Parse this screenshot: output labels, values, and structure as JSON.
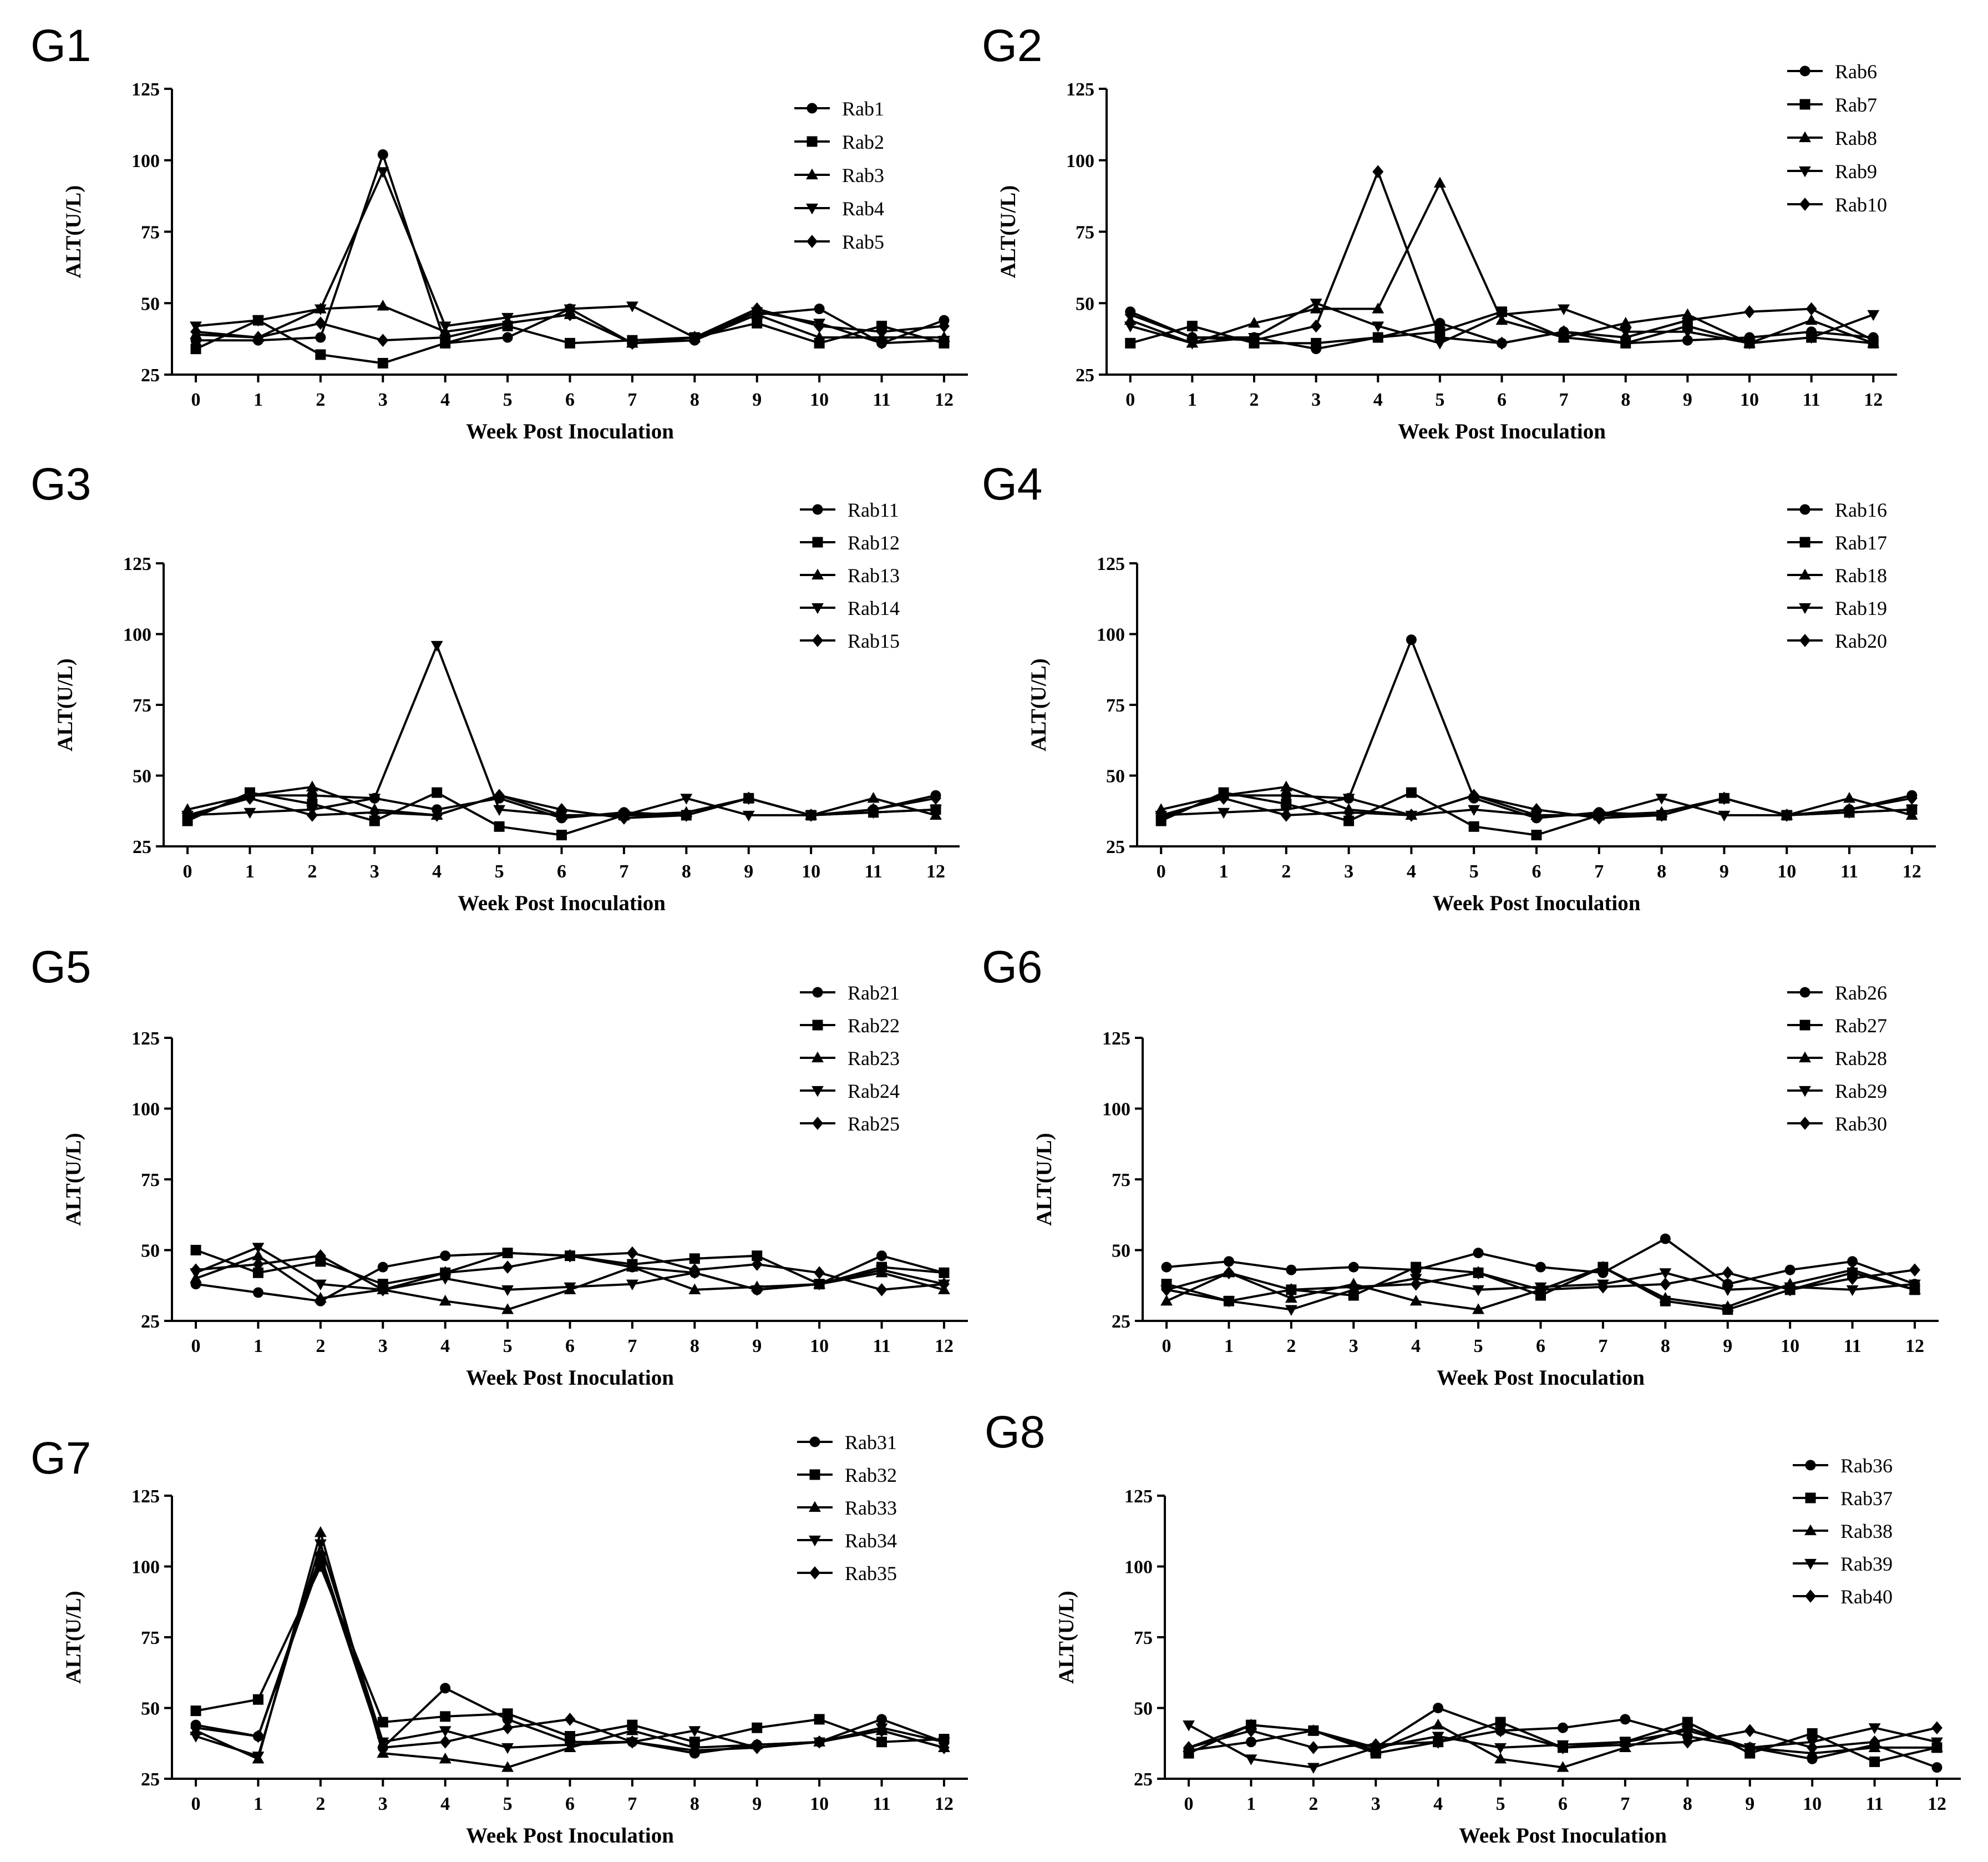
{
  "figure": {
    "colors": {
      "line": "#000000",
      "background": "#ffffff"
    }
  },
  "chart_data": [
    {
      "panel": "G1",
      "type": "line",
      "xlabel": "Week Post Inoculation",
      "ylabel": "ALT(U/L)",
      "ylim": [
        25,
        125
      ],
      "xlim": [
        0,
        12
      ],
      "x": [
        0,
        1,
        2,
        3,
        4,
        5,
        6,
        7,
        8,
        9,
        10,
        11,
        12
      ],
      "yticks": [
        25,
        50,
        75,
        100,
        125
      ],
      "series": [
        {
          "name": "Rab1",
          "marker": "circle",
          "values": [
            37,
            37,
            38,
            102,
            36,
            38,
            48,
            36,
            37,
            46,
            48,
            36,
            44
          ]
        },
        {
          "name": "Rab2",
          "marker": "square",
          "values": [
            34,
            44,
            32,
            29,
            36,
            42,
            36,
            37,
            38,
            43,
            36,
            42,
            36
          ]
        },
        {
          "name": "Rab3",
          "marker": "triangle",
          "values": [
            39,
            38,
            48,
            49,
            40,
            43,
            46,
            36,
            38,
            46,
            38,
            38,
            38
          ]
        },
        {
          "name": "Rab4",
          "marker": "tri-down",
          "values": [
            42,
            44,
            48,
            96,
            42,
            45,
            48,
            49,
            38,
            47,
            43,
            36,
            37
          ]
        },
        {
          "name": "Rab5",
          "marker": "diamond",
          "values": [
            40,
            38,
            43,
            37,
            38,
            43,
            46,
            36,
            38,
            48,
            42,
            40,
            42
          ]
        }
      ]
    },
    {
      "panel": "G2",
      "type": "line",
      "xlabel": "Week Post Inoculation",
      "ylabel": "ALT(U/L)",
      "ylim": [
        25,
        125
      ],
      "xlim": [
        0,
        12
      ],
      "x": [
        0,
        1,
        2,
        3,
        4,
        5,
        6,
        7,
        8,
        9,
        10,
        11,
        12
      ],
      "yticks": [
        25,
        50,
        75,
        100,
        125
      ],
      "series": [
        {
          "name": "Rab6",
          "marker": "circle",
          "values": [
            47,
            38,
            38,
            34,
            38,
            43,
            36,
            40,
            36,
            37,
            38,
            40,
            38
          ]
        },
        {
          "name": "Rab7",
          "marker": "square",
          "values": [
            36,
            42,
            36,
            36,
            38,
            40,
            47,
            38,
            36,
            42,
            36,
            38,
            36
          ]
        },
        {
          "name": "Rab8",
          "marker": "triangle",
          "values": [
            44,
            36,
            43,
            48,
            48,
            92,
            44,
            38,
            43,
            46,
            36,
            44,
            36
          ]
        },
        {
          "name": "Rab9",
          "marker": "tri-down",
          "values": [
            42,
            36,
            38,
            50,
            42,
            36,
            46,
            48,
            40,
            40,
            36,
            38,
            46
          ]
        },
        {
          "name": "Rab10",
          "marker": "diamond",
          "values": [
            46,
            38,
            37,
            42,
            96,
            38,
            36,
            40,
            38,
            44,
            47,
            48,
            37
          ]
        }
      ]
    },
    {
      "panel": "G3",
      "type": "line",
      "xlabel": "Week Post Inoculation",
      "ylabel": "ALT(U/L)",
      "ylim": [
        25,
        125
      ],
      "xlim": [
        0,
        12
      ],
      "x": [
        0,
        1,
        2,
        3,
        4,
        5,
        6,
        7,
        8,
        9,
        10,
        11,
        12
      ],
      "yticks": [
        25,
        50,
        75,
        100,
        125
      ],
      "series": [
        {
          "name": "Rab11",
          "marker": "circle",
          "values": [
            35,
            43,
            43,
            42,
            38,
            42,
            35,
            37,
            36,
            42,
            36,
            38,
            43
          ]
        },
        {
          "name": "Rab12",
          "marker": "square",
          "values": [
            34,
            44,
            40,
            34,
            44,
            32,
            29,
            36,
            36,
            42,
            36,
            37,
            38
          ]
        },
        {
          "name": "Rab13",
          "marker": "triangle",
          "values": [
            38,
            43,
            46,
            38,
            36,
            43,
            36,
            36,
            37,
            42,
            36,
            42,
            36
          ]
        },
        {
          "name": "Rab14",
          "marker": "tri-down",
          "values": [
            36,
            37,
            38,
            42,
            96,
            38,
            36,
            36,
            42,
            36,
            36,
            37,
            38
          ]
        },
        {
          "name": "Rab15",
          "marker": "diamond",
          "values": [
            36,
            42,
            36,
            37,
            36,
            43,
            38,
            35,
            36,
            42,
            36,
            38,
            42
          ]
        }
      ]
    },
    {
      "panel": "G4",
      "type": "line",
      "xlabel": "Week Post Inoculation",
      "ylabel": "ALT(U/L)",
      "ylim": [
        25,
        125
      ],
      "xlim": [
        0,
        12
      ],
      "x": [
        0,
        1,
        2,
        3,
        4,
        5,
        6,
        7,
        8,
        9,
        10,
        11,
        12
      ],
      "yticks": [
        25,
        50,
        75,
        100,
        125
      ],
      "series": [
        {
          "name": "Rab16",
          "marker": "circle",
          "values": [
            35,
            43,
            43,
            42,
            98,
            42,
            35,
            37,
            36,
            42,
            36,
            38,
            43
          ]
        },
        {
          "name": "Rab17",
          "marker": "square",
          "values": [
            34,
            44,
            40,
            34,
            44,
            32,
            29,
            36,
            36,
            42,
            36,
            37,
            38
          ]
        },
        {
          "name": "Rab18",
          "marker": "triangle",
          "values": [
            38,
            43,
            46,
            38,
            36,
            43,
            36,
            36,
            37,
            42,
            36,
            42,
            36
          ]
        },
        {
          "name": "Rab19",
          "marker": "tri-down",
          "values": [
            36,
            37,
            38,
            42,
            36,
            38,
            36,
            36,
            42,
            36,
            36,
            37,
            38
          ]
        },
        {
          "name": "Rab20",
          "marker": "diamond",
          "values": [
            36,
            42,
            36,
            37,
            36,
            43,
            38,
            35,
            36,
            42,
            36,
            38,
            42
          ]
        }
      ]
    },
    {
      "panel": "G5",
      "type": "line",
      "xlabel": "Week Post Inoculation",
      "ylabel": "ALT(U/L)",
      "ylim": [
        25,
        125
      ],
      "xlim": [
        0,
        12
      ],
      "x": [
        0,
        1,
        2,
        3,
        4,
        5,
        6,
        7,
        8,
        9,
        10,
        11,
        12
      ],
      "yticks": [
        25,
        50,
        75,
        100,
        125
      ],
      "series": [
        {
          "name": "Rab21",
          "marker": "circle",
          "values": [
            38,
            35,
            32,
            44,
            48,
            49,
            48,
            44,
            42,
            36,
            38,
            48,
            42
          ]
        },
        {
          "name": "Rab22",
          "marker": "square",
          "values": [
            50,
            42,
            46,
            38,
            42,
            49,
            48,
            45,
            47,
            48,
            38,
            44,
            42
          ]
        },
        {
          "name": "Rab23",
          "marker": "triangle",
          "values": [
            40,
            48,
            33,
            36,
            32,
            29,
            36,
            44,
            36,
            37,
            38,
            42,
            36
          ]
        },
        {
          "name": "Rab24",
          "marker": "tri-down",
          "values": [
            42,
            51,
            38,
            36,
            40,
            36,
            37,
            38,
            42,
            36,
            38,
            43,
            38
          ]
        },
        {
          "name": "Rab25",
          "marker": "diamond",
          "values": [
            43,
            45,
            48,
            36,
            42,
            44,
            48,
            49,
            43,
            45,
            42,
            36,
            38
          ]
        }
      ]
    },
    {
      "panel": "G6",
      "type": "line",
      "xlabel": "Week Post Inoculation",
      "ylabel": "ALT(U/L)",
      "ylim": [
        25,
        125
      ],
      "xlim": [
        0,
        12
      ],
      "x": [
        0,
        1,
        2,
        3,
        4,
        5,
        6,
        7,
        8,
        9,
        10,
        11,
        12
      ],
      "yticks": [
        25,
        50,
        75,
        100,
        125
      ],
      "series": [
        {
          "name": "Rab26",
          "marker": "circle",
          "values": [
            44,
            46,
            43,
            44,
            43,
            49,
            44,
            42,
            54,
            38,
            43,
            46,
            38
          ]
        },
        {
          "name": "Rab27",
          "marker": "square",
          "values": [
            38,
            32,
            36,
            34,
            44,
            42,
            34,
            44,
            32,
            29,
            36,
            42,
            36
          ]
        },
        {
          "name": "Rab28",
          "marker": "triangle",
          "values": [
            32,
            42,
            33,
            38,
            32,
            29,
            36,
            44,
            33,
            30,
            38,
            43,
            36
          ]
        },
        {
          "name": "Rab29",
          "marker": "tri-down",
          "values": [
            36,
            32,
            29,
            36,
            40,
            36,
            37,
            38,
            42,
            36,
            37,
            36,
            38
          ]
        },
        {
          "name": "Rab30",
          "marker": "diamond",
          "values": [
            36,
            42,
            36,
            37,
            38,
            42,
            36,
            37,
            38,
            42,
            36,
            40,
            43
          ]
        }
      ]
    },
    {
      "panel": "G7",
      "type": "line",
      "xlabel": "Week Post Inoculation",
      "ylabel": "ALT(U/L)",
      "ylim": [
        25,
        125
      ],
      "xlim": [
        0,
        12
      ],
      "x": [
        0,
        1,
        2,
        3,
        4,
        5,
        6,
        7,
        8,
        9,
        10,
        11,
        12
      ],
      "yticks": [
        25,
        50,
        75,
        100,
        125
      ],
      "series": [
        {
          "name": "Rab31",
          "marker": "circle",
          "values": [
            44,
            40,
            104,
            36,
            57,
            46,
            38,
            38,
            34,
            37,
            38,
            46,
            38
          ]
        },
        {
          "name": "Rab32",
          "marker": "square",
          "values": [
            49,
            53,
            100,
            45,
            47,
            48,
            40,
            44,
            38,
            43,
            46,
            38,
            39
          ]
        },
        {
          "name": "Rab33",
          "marker": "triangle",
          "values": [
            42,
            32,
            112,
            34,
            32,
            29,
            36,
            42,
            36,
            37,
            38,
            42,
            36
          ]
        },
        {
          "name": "Rab34",
          "marker": "tri-down",
          "values": [
            40,
            33,
            108,
            38,
            42,
            36,
            37,
            38,
            42,
            36,
            38,
            43,
            38
          ]
        },
        {
          "name": "Rab35",
          "marker": "diamond",
          "values": [
            43,
            40,
            102,
            36,
            38,
            43,
            46,
            38,
            35,
            36,
            38,
            42,
            36
          ]
        }
      ]
    },
    {
      "panel": "G8",
      "type": "line",
      "xlabel": "Week Post Inoculation",
      "ylabel": "ALT(U/L)",
      "ylim": [
        25,
        125
      ],
      "xlim": [
        0,
        12
      ],
      "x": [
        0,
        1,
        2,
        3,
        4,
        5,
        6,
        7,
        8,
        9,
        10,
        11,
        12
      ],
      "yticks": [
        25,
        50,
        75,
        100,
        125
      ],
      "series": [
        {
          "name": "Rab36",
          "marker": "circle",
          "values": [
            35,
            38,
            42,
            36,
            50,
            42,
            43,
            46,
            40,
            36,
            32,
            37,
            29
          ]
        },
        {
          "name": "Rab37",
          "marker": "square",
          "values": [
            34,
            44,
            42,
            34,
            38,
            45,
            36,
            38,
            45,
            34,
            41,
            31,
            36
          ]
        },
        {
          "name": "Rab38",
          "marker": "triangle",
          "values": [
            36,
            44,
            42,
            35,
            44,
            32,
            29,
            36,
            43,
            36,
            34,
            36,
            36
          ]
        },
        {
          "name": "Rab39",
          "marker": "tri-down",
          "values": [
            44,
            32,
            29,
            36,
            40,
            36,
            37,
            38,
            42,
            36,
            38,
            43,
            38
          ]
        },
        {
          "name": "Rab40",
          "marker": "diamond",
          "values": [
            36,
            42,
            36,
            37,
            38,
            42,
            36,
            37,
            38,
            42,
            36,
            38,
            43
          ]
        }
      ]
    }
  ]
}
